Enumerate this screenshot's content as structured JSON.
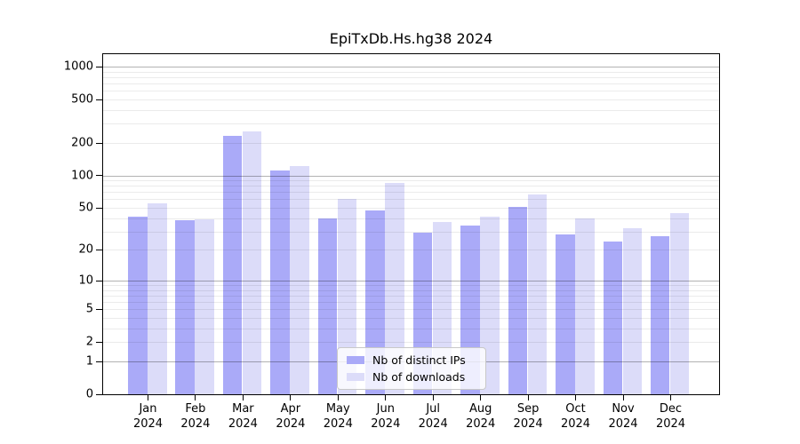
{
  "chart_data": {
    "type": "bar",
    "title": "EpiTxDb.Hs.hg38 2024",
    "categories": [
      "Jan",
      "Feb",
      "Mar",
      "Apr",
      "May",
      "Jun",
      "Jul",
      "Aug",
      "Sep",
      "Oct",
      "Nov",
      "Dec"
    ],
    "category_year": "2024",
    "series": [
      {
        "name": "Nb of distinct IPs",
        "color": "#aaaaf8",
        "values": [
          41,
          38,
          230,
          110,
          40,
          47,
          29,
          34,
          51,
          28,
          24,
          27
        ]
      },
      {
        "name": "Nb of downloads",
        "color": "#dcdcf9",
        "values": [
          55,
          39,
          255,
          122,
          61,
          85,
          37,
          41,
          66,
          40,
          32,
          45
        ]
      }
    ],
    "y_scale": "log10(value+1)",
    "y_ticks": [
      0,
      1,
      2,
      5,
      10,
      20,
      50,
      100,
      200,
      500,
      1000
    ],
    "ylim": [
      0,
      1300
    ],
    "grid": true,
    "legend_position": "bottom-center",
    "colors": {
      "axis": "#000000",
      "major_gridline": "rgba(0,0,0,0.30)",
      "minor_gridline": "rgba(0,0,0,0.08)",
      "background": "#ffffff",
      "text": "#000000"
    }
  }
}
